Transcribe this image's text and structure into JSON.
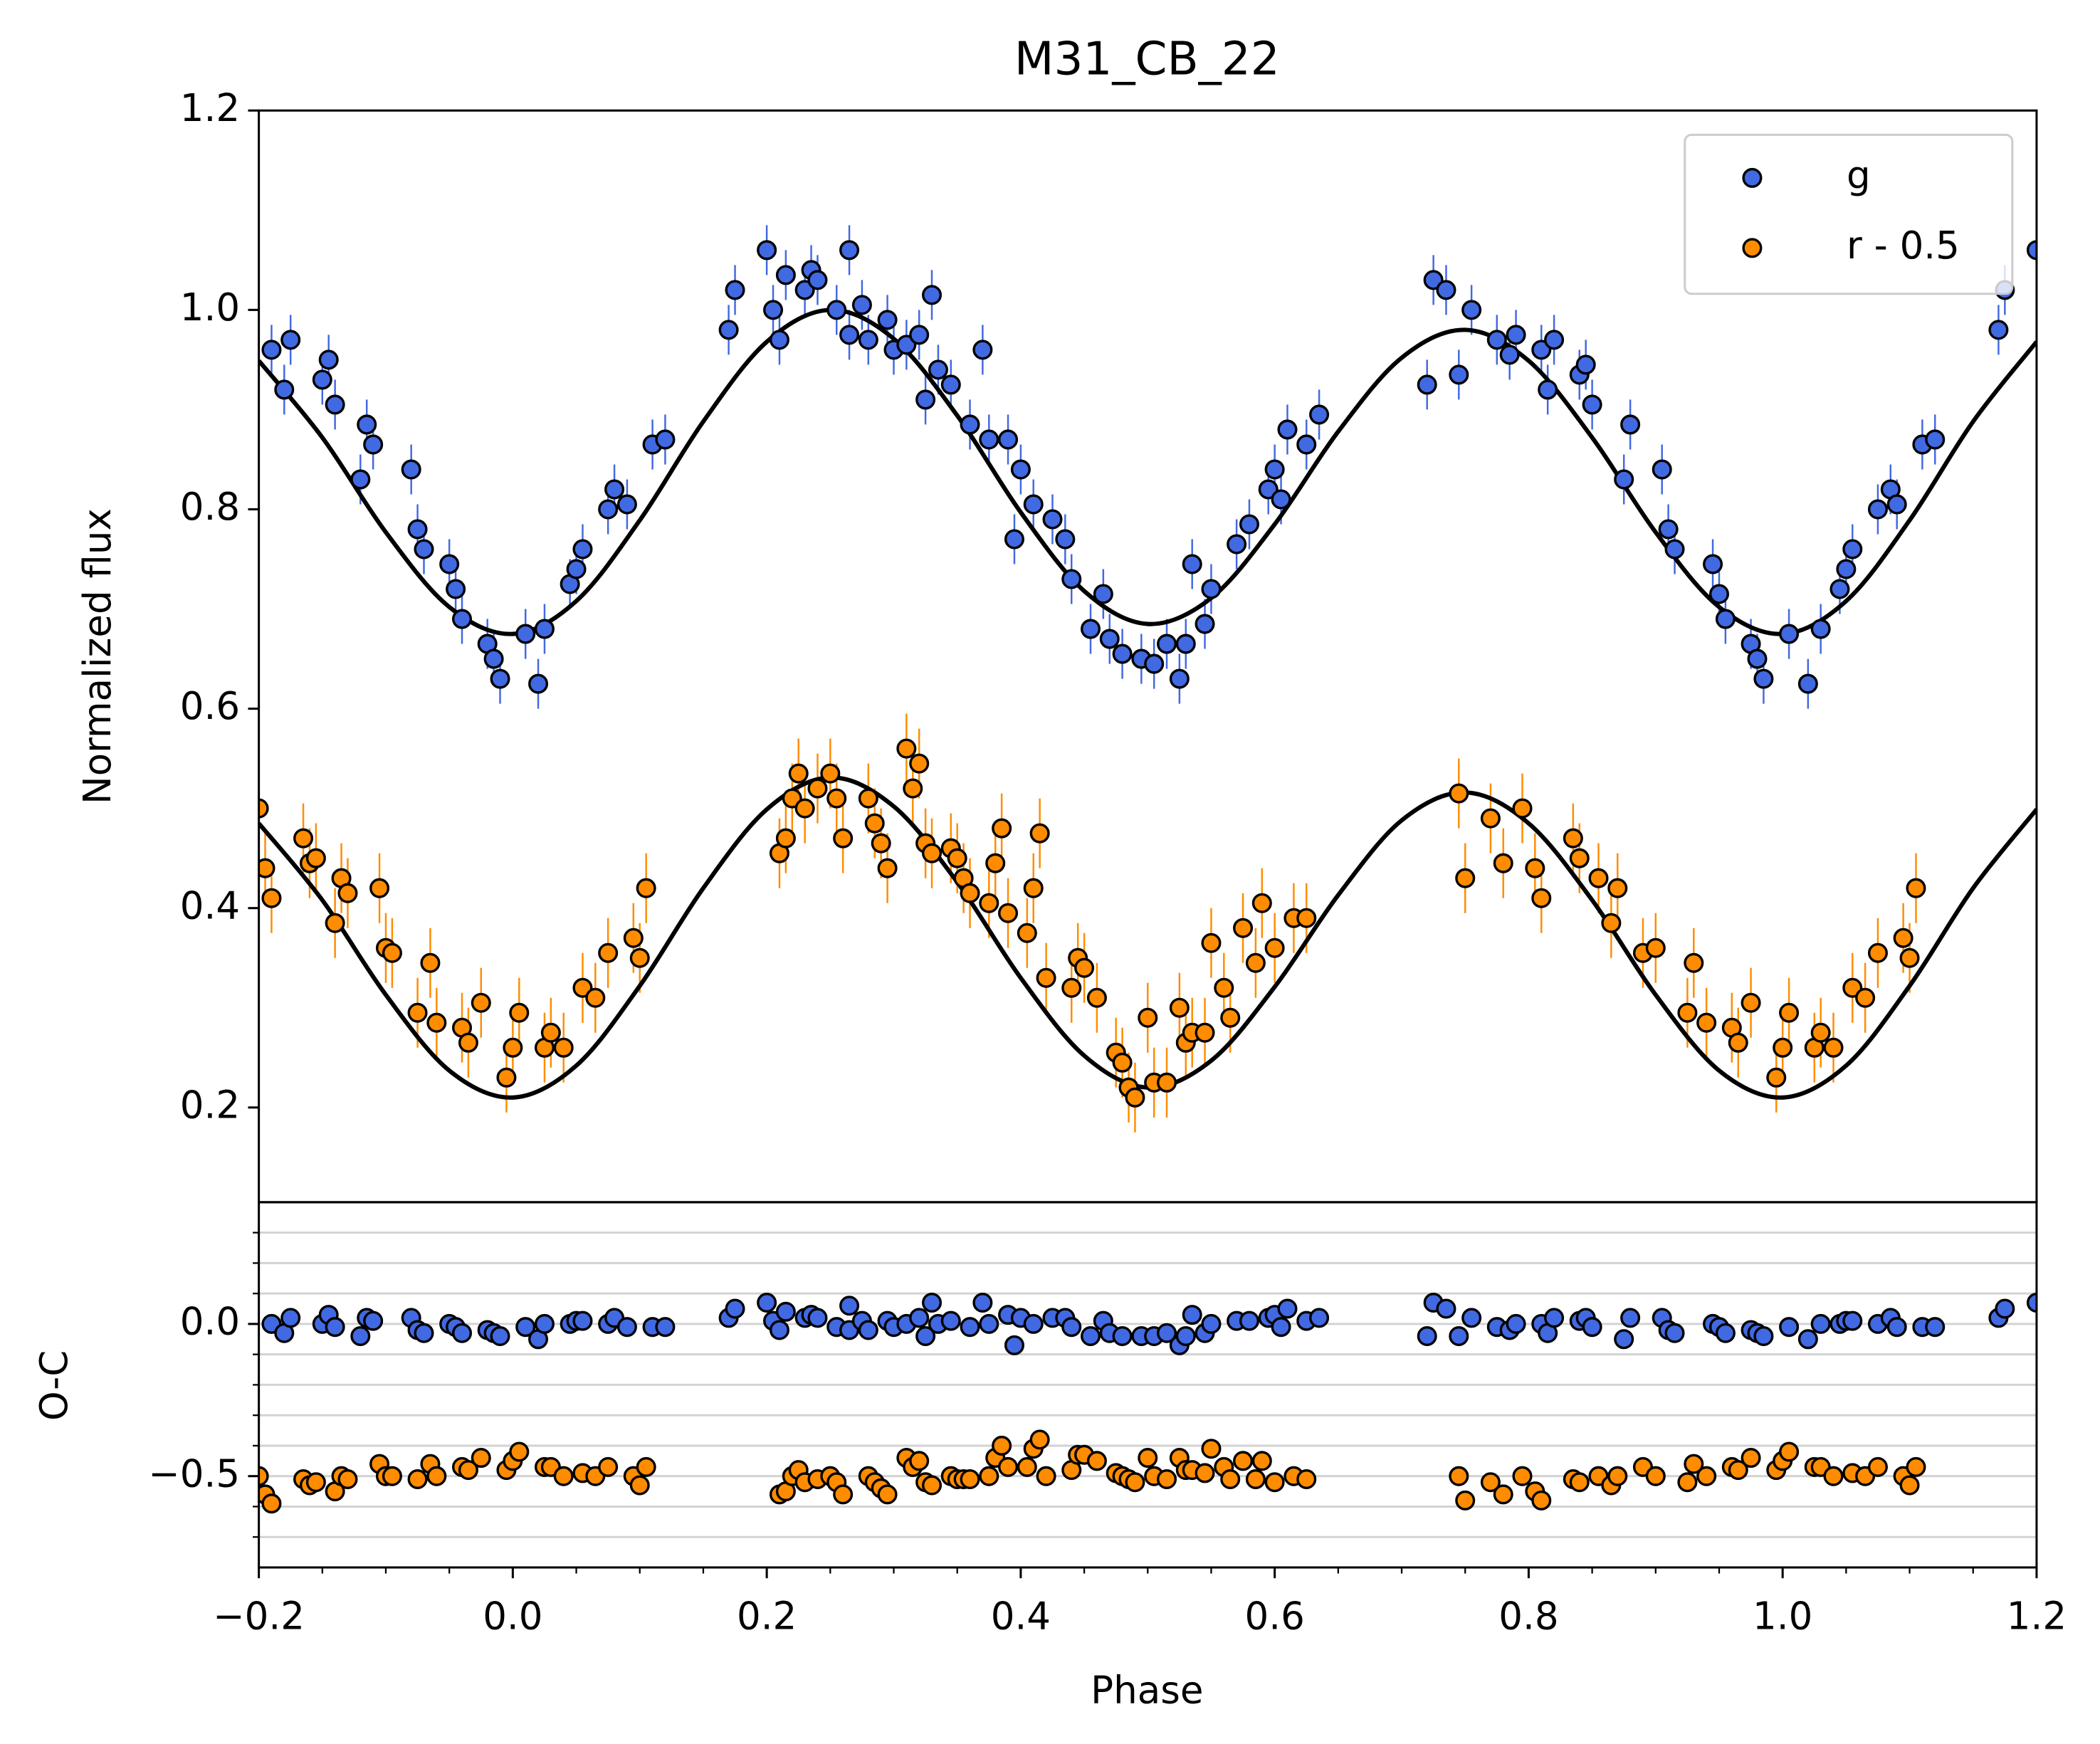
{
  "chart_data": {
    "type": "scatter",
    "title": "M31_CB_22",
    "ylabel": "Normalized flux",
    "xlabel": "Phase",
    "xlim": [
      -0.2,
      1.2
    ],
    "xticks": [
      {
        "value": -0.2,
        "label": "−0.2"
      },
      {
        "value": 0,
        "label": "0.0"
      },
      0.2,
      0.4,
      0.6,
      0.8,
      {
        "value": 1,
        "label": "1.0"
      },
      1.2
    ],
    "minor_xticks": [
      -0.15,
      -0.1,
      -0.05,
      0.05,
      0.1,
      0.15,
      0.25,
      0.3,
      0.35,
      0.45,
      0.5,
      0.55,
      0.65,
      0.7,
      0.75,
      0.85,
      0.9,
      0.95,
      1.05,
      1.1,
      1.15
    ],
    "ylim": [
      0.105,
      1.2
    ],
    "yticks": [
      0.2,
      0.4,
      0.6,
      0.8,
      {
        "value": 1,
        "label": "1.0"
      },
      1.2
    ],
    "legend": "upper right",
    "residual_panel": {
      "ylabel": "O-C",
      "ylim": [
        -0.8,
        0.4
      ],
      "yticks": [
        {
          "value": -0.5,
          "label": "−0.5"
        },
        {
          "value": 0,
          "label": "0.0"
        }
      ],
      "minor_yticks": [
        0.3,
        0.2,
        0.1,
        -0.1,
        -0.2,
        -0.3,
        -0.4,
        -0.6,
        -0.7
      ],
      "grid": true
    },
    "series": [
      {
        "name": "g",
        "color": "#4169e1",
        "yerr": 0.025,
        "x": [
          -0.19,
          -0.18,
          -0.175,
          -0.15,
          -0.145,
          -0.14,
          -0.12,
          -0.115,
          -0.11,
          -0.08,
          -0.075,
          -0.07,
          -0.05,
          -0.045,
          -0.04,
          -0.02,
          -0.015,
          -0.01,
          0.01,
          0.02,
          0.025,
          0.045,
          0.05,
          0.055,
          0.075,
          0.08,
          0.09,
          0.11,
          0.12,
          0.17,
          0.175,
          0.2,
          0.205,
          0.21,
          0.215,
          0.23,
          0.235,
          0.24,
          0.255,
          0.265,
          0.265,
          0.275,
          0.28,
          0.295,
          0.3,
          0.31,
          0.32,
          0.325,
          0.33,
          0.335,
          0.345,
          0.36,
          0.37,
          0.375,
          0.39,
          0.395,
          0.4,
          0.41,
          0.425,
          0.435,
          0.44,
          0.455,
          0.465,
          0.47,
          0.48,
          0.495,
          0.505,
          0.515,
          0.525,
          0.53,
          0.535,
          0.545,
          0.55,
          0.57,
          0.58,
          0.595,
          0.6,
          0.605,
          0.61,
          0.625,
          0.635,
          0.72,
          0.725,
          0.735,
          0.745,
          0.755,
          0.775,
          0.785,
          0.79,
          0.81,
          0.815,
          0.82,
          0.84,
          0.845,
          0.85,
          0.875,
          0.88,
          0.905,
          0.91,
          0.915,
          0.945,
          0.95,
          0.955,
          0.975,
          0.98,
          0.985,
          1.005,
          1.02,
          1.03,
          1.045,
          1.05,
          1.055,
          1.075,
          1.085,
          1.09,
          1.11,
          1.12,
          1.17,
          1.175,
          1.2
        ],
        "values": [
          0.96,
          0.92,
          0.97,
          0.93,
          0.95,
          0.905,
          0.83,
          0.885,
          0.865,
          0.84,
          0.78,
          0.76,
          0.745,
          0.72,
          0.69,
          0.665,
          0.65,
          0.63,
          0.675,
          0.625,
          0.68,
          0.725,
          0.74,
          0.76,
          0.8,
          0.82,
          0.805,
          0.865,
          0.87,
          0.98,
          1.02,
          1.06,
          1.0,
          0.97,
          1.035,
          1.02,
          1.04,
          1.03,
          1.0,
          0.975,
          1.06,
          1.005,
          0.97,
          0.99,
          0.96,
          0.965,
          0.975,
          0.91,
          1.015,
          0.94,
          0.925,
          0.885,
          0.96,
          0.87,
          0.87,
          0.77,
          0.84,
          0.805,
          0.79,
          0.77,
          0.73,
          0.68,
          0.715,
          0.67,
          0.655,
          0.65,
          0.645,
          0.665,
          0.63,
          0.665,
          0.745,
          0.685,
          0.72,
          0.765,
          0.785,
          0.82,
          0.84,
          0.81,
          0.88,
          0.865,
          0.895,
          0.925,
          1.03,
          1.02,
          0.935,
          1.0,
          0.97,
          0.955,
          0.975,
          0.96,
          0.92,
          0.97,
          0.935,
          0.945,
          0.905,
          0.83,
          0.885,
          0.84,
          0.78,
          0.76,
          0.745,
          0.715,
          0.69,
          0.665,
          0.65,
          0.63,
          0.675,
          0.625,
          0.68,
          0.72,
          0.74,
          0.76,
          0.8,
          0.82,
          0.805,
          0.865,
          0.87,
          0.98,
          1.02,
          1.06
        ],
        "residuals": [
          0.0,
          -0.03,
          0.02,
          0.0,
          0.03,
          -0.01,
          -0.04,
          0.02,
          0.01,
          0.02,
          -0.02,
          -0.03,
          0.0,
          -0.01,
          -0.03,
          -0.02,
          -0.03,
          -0.04,
          -0.01,
          -0.05,
          0.0,
          0.0,
          0.01,
          0.01,
          0.0,
          0.02,
          -0.01,
          -0.01,
          -0.01,
          0.02,
          0.05,
          0.07,
          0.01,
          -0.02,
          0.04,
          0.02,
          0.03,
          0.02,
          -0.01,
          -0.02,
          0.06,
          0.01,
          -0.02,
          0.01,
          -0.01,
          0.0,
          0.02,
          -0.04,
          0.07,
          0.0,
          0.01,
          -0.01,
          0.07,
          0.0,
          0.03,
          -0.07,
          0.02,
          0.0,
          0.02,
          0.02,
          -0.01,
          -0.04,
          0.01,
          -0.03,
          -0.04,
          -0.04,
          -0.04,
          -0.03,
          -0.07,
          -0.04,
          0.03,
          -0.03,
          0.0,
          0.01,
          0.01,
          0.02,
          0.03,
          -0.01,
          0.05,
          0.01,
          0.02,
          -0.04,
          0.07,
          0.05,
          -0.04,
          0.02,
          -0.01,
          -0.02,
          0.0,
          0.0,
          -0.03,
          0.02,
          0.01,
          0.02,
          -0.01,
          -0.05,
          0.02,
          0.02,
          -0.02,
          -0.03,
          0.0,
          -0.01,
          -0.03,
          -0.02,
          -0.03,
          -0.04,
          -0.01,
          -0.05,
          0.0,
          0.0,
          0.01,
          0.01,
          0.0,
          0.02,
          -0.01,
          -0.01,
          -0.01,
          0.02,
          0.05,
          0.07
        ]
      },
      {
        "name": "r - 0.5",
        "color": "#ff8c00",
        "yerr": 0.035,
        "x": [
          -0.2,
          -0.195,
          -0.19,
          -0.165,
          -0.16,
          -0.155,
          -0.14,
          -0.135,
          -0.13,
          -0.105,
          -0.1,
          -0.095,
          -0.075,
          -0.065,
          -0.06,
          -0.04,
          -0.035,
          -0.025,
          -0.005,
          0.0,
          0.005,
          0.025,
          0.03,
          0.04,
          0.055,
          0.065,
          0.075,
          0.095,
          0.1,
          0.105,
          0.21,
          0.215,
          0.22,
          0.225,
          0.23,
          0.24,
          0.25,
          0.255,
          0.26,
          0.28,
          0.285,
          0.29,
          0.295,
          0.31,
          0.315,
          0.32,
          0.325,
          0.33,
          0.345,
          0.35,
          0.355,
          0.36,
          0.375,
          0.38,
          0.385,
          0.39,
          0.405,
          0.41,
          0.415,
          0.42,
          0.44,
          0.445,
          0.45,
          0.46,
          0.475,
          0.48,
          0.485,
          0.49,
          0.5,
          0.505,
          0.515,
          0.525,
          0.53,
          0.535,
          0.545,
          0.55,
          0.56,
          0.565,
          0.575,
          0.585,
          0.59,
          0.6,
          0.615,
          0.625,
          0.745,
          0.75,
          0.77,
          0.78,
          0.795,
          0.805,
          0.81,
          0.835,
          0.84,
          0.855,
          0.865,
          0.87,
          0.89,
          0.9,
          0.925,
          0.93,
          0.94,
          0.96,
          0.965,
          0.975,
          0.995,
          1.0,
          1.005,
          1.025,
          1.03,
          1.04,
          1.055,
          1.065,
          1.075,
          1.095,
          1.1,
          1.105
        ],
        "values": [
          0.5,
          0.44,
          0.41,
          0.47,
          0.445,
          0.45,
          0.385,
          0.43,
          0.415,
          0.42,
          0.36,
          0.355,
          0.295,
          0.345,
          0.285,
          0.28,
          0.265,
          0.305,
          0.23,
          0.26,
          0.295,
          0.26,
          0.275,
          0.26,
          0.32,
          0.31,
          0.355,
          0.37,
          0.35,
          0.42,
          0.455,
          0.47,
          0.51,
          0.535,
          0.5,
          0.52,
          0.535,
          0.51,
          0.47,
          0.51,
          0.485,
          0.465,
          0.44,
          0.56,
          0.52,
          0.545,
          0.465,
          0.455,
          0.46,
          0.45,
          0.43,
          0.415,
          0.405,
          0.445,
          0.48,
          0.395,
          0.375,
          0.42,
          0.475,
          0.33,
          0.32,
          0.35,
          0.34,
          0.31,
          0.255,
          0.245,
          0.22,
          0.21,
          0.29,
          0.225,
          0.225,
          0.3,
          0.265,
          0.275,
          0.275,
          0.365,
          0.32,
          0.29,
          0.38,
          0.345,
          0.405,
          0.36,
          0.39,
          0.39,
          0.515,
          0.43,
          0.49,
          0.445,
          0.5,
          0.44,
          0.41,
          0.47,
          0.45,
          0.43,
          0.385,
          0.42,
          0.355,
          0.36,
          0.295,
          0.345,
          0.285,
          0.28,
          0.265,
          0.305,
          0.23,
          0.26,
          0.295,
          0.26,
          0.275,
          0.26,
          0.32,
          0.31,
          0.355,
          0.37,
          0.35,
          0.42
        ],
        "residuals": [
          -0.5,
          -0.56,
          -0.59,
          -0.51,
          -0.53,
          -0.52,
          -0.55,
          -0.5,
          -0.51,
          -0.46,
          -0.5,
          -0.5,
          -0.51,
          -0.46,
          -0.5,
          -0.47,
          -0.48,
          -0.44,
          -0.48,
          -0.45,
          -0.42,
          -0.47,
          -0.47,
          -0.5,
          -0.49,
          -0.5,
          -0.47,
          -0.5,
          -0.53,
          -0.47,
          -0.56,
          -0.55,
          -0.5,
          -0.48,
          -0.52,
          -0.51,
          -0.5,
          -0.52,
          -0.56,
          -0.5,
          -0.52,
          -0.54,
          -0.56,
          -0.44,
          -0.47,
          -0.45,
          -0.52,
          -0.53,
          -0.5,
          -0.51,
          -0.51,
          -0.51,
          -0.5,
          -0.44,
          -0.4,
          -0.47,
          -0.47,
          -0.41,
          -0.38,
          -0.5,
          -0.48,
          -0.43,
          -0.43,
          -0.45,
          -0.49,
          -0.5,
          -0.51,
          -0.52,
          -0.44,
          -0.5,
          -0.51,
          -0.44,
          -0.48,
          -0.48,
          -0.49,
          -0.41,
          -0.47,
          -0.51,
          -0.45,
          -0.51,
          -0.45,
          -0.52,
          -0.5,
          -0.51,
          -0.5,
          -0.58,
          -0.52,
          -0.56,
          -0.5,
          -0.55,
          -0.58,
          -0.51,
          -0.52,
          -0.5,
          -0.53,
          -0.5,
          -0.47,
          -0.5,
          -0.52,
          -0.46,
          -0.5,
          -0.47,
          -0.48,
          -0.44,
          -0.48,
          -0.45,
          -0.42,
          -0.47,
          -0.47,
          -0.5,
          -0.49,
          -0.5,
          -0.47,
          -0.5,
          -0.53,
          -0.47
        ]
      }
    ],
    "model_curves": [
      {
        "color": "#000000",
        "x": [
          -0.2,
          -0.15,
          -0.1,
          -0.05,
          0,
          0.05,
          0.1,
          0.15,
          0.2,
          0.25,
          0.3,
          0.35,
          0.4,
          0.45,
          0.5,
          0.55,
          0.6,
          0.65,
          0.7,
          0.75,
          0.8,
          0.85,
          0.9,
          0.95,
          1.0,
          1.05,
          1.1,
          1.15,
          1.2
        ],
        "values": [
          0.949,
          0.872,
          0.777,
          0.702,
          0.675,
          0.708,
          0.789,
          0.888,
          0.968,
          1.0,
          0.971,
          0.894,
          0.797,
          0.718,
          0.685,
          0.711,
          0.785,
          0.878,
          0.952,
          0.98,
          0.949,
          0.872,
          0.777,
          0.702,
          0.675,
          0.708,
          0.789,
          0.888,
          0.968
        ]
      },
      {
        "color": "#000000",
        "x": [
          -0.2,
          -0.15,
          -0.1,
          -0.05,
          0,
          0.05,
          0.1,
          0.15,
          0.2,
          0.25,
          0.3,
          0.35,
          0.4,
          0.45,
          0.5,
          0.55,
          0.6,
          0.65,
          0.7,
          0.75,
          0.8,
          0.85,
          0.9,
          0.95,
          1.0,
          1.05,
          1.1,
          1.15,
          1.2
        ],
        "values": [
          0.485,
          0.408,
          0.313,
          0.237,
          0.21,
          0.242,
          0.322,
          0.42,
          0.499,
          0.531,
          0.502,
          0.426,
          0.33,
          0.252,
          0.22,
          0.247,
          0.321,
          0.413,
          0.488,
          0.516,
          0.485,
          0.408,
          0.313,
          0.237,
          0.21,
          0.242,
          0.322,
          0.42,
          0.499
        ]
      }
    ]
  }
}
